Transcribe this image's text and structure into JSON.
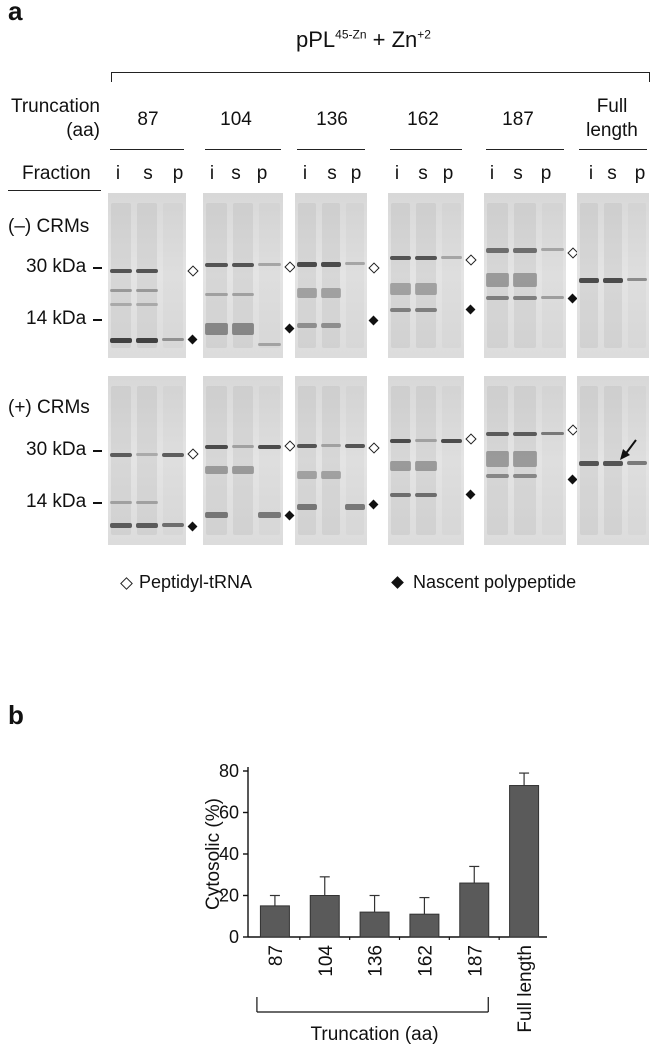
{
  "panel_a": {
    "letter": "a",
    "construct": "pPL",
    "construct_sup": "45-Zn",
    "plus_ion": " + Zn",
    "ion_sup": "+2",
    "truncation_label_line1": "Truncation",
    "truncation_label_line2": "(aa)",
    "fraction_label": "Fraction",
    "truncations": [
      "87",
      "104",
      "136",
      "162",
      "187"
    ],
    "full_length_line1": "Full",
    "full_length_line2": "length",
    "fractions": [
      "i",
      "s",
      "p"
    ],
    "rows": [
      {
        "label": "(–) CRMs",
        "markers": [
          "30 kDa",
          "14 kDa"
        ]
      },
      {
        "label": "(+) CRMs",
        "markers": [
          "30 kDa",
          "14 kDa"
        ]
      }
    ],
    "legend": {
      "open_diamond_label": "Peptidyl-tRNA",
      "filled_diamond_label": "Nascent polypeptide"
    }
  },
  "panel_b": {
    "letter": "b"
  },
  "chart_data": {
    "type": "bar",
    "ylabel": "Cytosolic (%)",
    "xlabel": "Truncation (aa)",
    "categories": [
      "87",
      "104",
      "136",
      "162",
      "187",
      "Full length"
    ],
    "values": [
      15,
      20,
      12,
      11,
      26,
      73
    ],
    "errors": [
      5,
      9,
      8,
      8,
      8,
      6
    ],
    "ylim": [
      0,
      80
    ],
    "yticks": [
      0,
      20,
      40,
      60,
      80
    ],
    "bar_color": "#5a5a5a",
    "truncation_bracket_categories": [
      "87",
      "104",
      "136",
      "162",
      "187"
    ]
  }
}
